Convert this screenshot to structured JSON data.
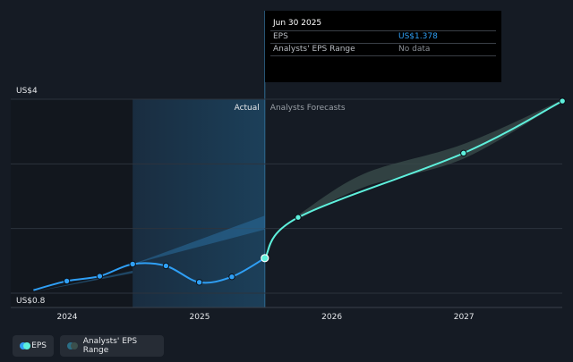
{
  "colors": {
    "background": "#151b24",
    "eps_actual": "#2f9ff5",
    "eps_forecast": "#5ef0dc",
    "range_band": "#3b4f4c",
    "actual_region": "#1b3a52",
    "grid": "#2c333d"
  },
  "tooltip": {
    "date": "Jun 30 2025",
    "eps_label": "EPS",
    "eps_value": "US$1.378",
    "range_label": "Analysts' EPS Range",
    "range_value": "No data"
  },
  "chart_data": {
    "type": "line",
    "y_axis": {
      "min": 0.8,
      "max": 4,
      "top_label": "US$4",
      "bottom_label": "US$0.8"
    },
    "x_ticks": [
      "2024",
      "2025",
      "2026",
      "2027"
    ],
    "region_labels": {
      "actual": "Actual",
      "forecast": "Analysts Forecasts"
    },
    "series": [
      {
        "name": "EPS",
        "kind": "actual",
        "points": [
          [
            "2023-09-30",
            0.85
          ],
          [
            "2023-12-31",
            1.0
          ],
          [
            "2024-03-31",
            1.08
          ],
          [
            "2024-06-30",
            1.28
          ],
          [
            "2024-09-30",
            1.25
          ],
          [
            "2024-12-31",
            0.98
          ],
          [
            "2025-03-31",
            1.07
          ],
          [
            "2025-06-30",
            1.378
          ]
        ]
      },
      {
        "name": "EPS",
        "kind": "forecast",
        "points": [
          [
            "2025-06-30",
            1.378
          ],
          [
            "2025-09-30",
            2.05
          ],
          [
            "2026-12-31",
            3.11
          ],
          [
            "2027-09-30",
            3.97
          ]
        ]
      }
    ],
    "forecast_range": {
      "name": "Analysts' EPS Range",
      "low": [
        [
          "2025-09-30",
          2.02
        ],
        [
          "2026-03-31",
          2.55
        ],
        [
          "2026-12-31",
          3.02
        ],
        [
          "2027-09-30",
          3.97
        ]
      ],
      "high": [
        [
          "2025-09-30",
          2.09
        ],
        [
          "2026-03-31",
          2.77
        ],
        [
          "2026-12-31",
          3.26
        ],
        [
          "2027-09-30",
          3.99
        ]
      ]
    },
    "historical_wedges": [
      {
        "from": [
          "2023-09-30",
          0.82
        ],
        "to": [
          "2024-06-30",
          1.13
        ],
        "to_high": 1.17
      },
      {
        "from": [
          "2024-06-30",
          1.28
        ],
        "to": [
          "2025-06-30",
          1.85
        ],
        "to_high": 2.08
      }
    ]
  },
  "legend": {
    "eps_label": "EPS",
    "range_label": "Analysts' EPS Range"
  }
}
